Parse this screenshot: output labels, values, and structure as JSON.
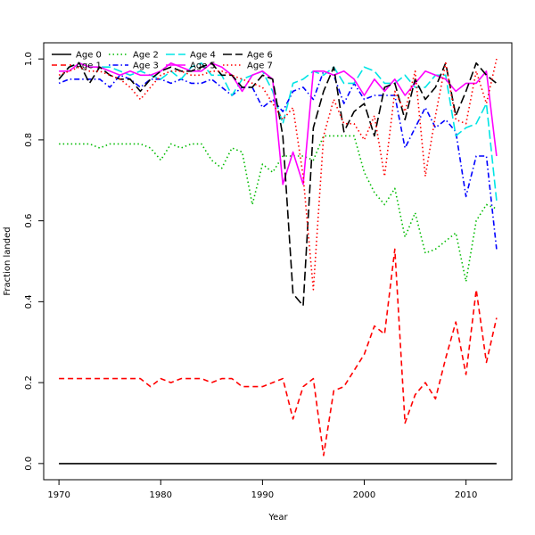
{
  "chart_data": {
    "type": "line",
    "title": "",
    "xlabel": "Year",
    "ylabel": "Fraction landed",
    "xlim": [
      1968.5,
      2014.5
    ],
    "ylim": [
      -0.04,
      1.04
    ],
    "xticks": [
      1970,
      1980,
      1990,
      2000,
      2010
    ],
    "yticks": [
      0.0,
      0.2,
      0.4,
      0.6,
      0.8,
      1.0
    ],
    "grid": false,
    "legend_position": "top-left",
    "x": [
      1970,
      1971,
      1972,
      1973,
      1974,
      1975,
      1976,
      1977,
      1978,
      1979,
      1980,
      1981,
      1982,
      1983,
      1984,
      1985,
      1986,
      1987,
      1988,
      1989,
      1990,
      1991,
      1992,
      1993,
      1994,
      1995,
      1996,
      1997,
      1998,
      1999,
      2000,
      2001,
      2002,
      2003,
      2004,
      2005,
      2006,
      2007,
      2008,
      2009,
      2010,
      2011,
      2012,
      2013
    ],
    "series": [
      {
        "name": "Age 0",
        "color": "#000000",
        "dash": "solid",
        "values": [
          0,
          0,
          0,
          0,
          0,
          0,
          0,
          0,
          0,
          0,
          0,
          0,
          0,
          0,
          0,
          0,
          0,
          0,
          0,
          0,
          0,
          0,
          0,
          0,
          0,
          0,
          0,
          0,
          0,
          0,
          0,
          0,
          0,
          0,
          0,
          0,
          0,
          0,
          0,
          0,
          0,
          0,
          0,
          0
        ]
      },
      {
        "name": "Age 1",
        "color": "#ff0000",
        "dash": "dashed",
        "values": [
          0.21,
          0.21,
          0.21,
          0.21,
          0.21,
          0.21,
          0.21,
          0.21,
          0.21,
          0.19,
          0.21,
          0.2,
          0.21,
          0.21,
          0.21,
          0.2,
          0.21,
          0.21,
          0.19,
          0.19,
          0.19,
          0.2,
          0.21,
          0.11,
          0.19,
          0.21,
          0.02,
          0.18,
          0.19,
          0.23,
          0.27,
          0.34,
          0.32,
          0.53,
          0.1,
          0.17,
          0.2,
          0.16,
          0.26,
          0.35,
          0.22,
          0.43,
          0.25,
          0.36
        ]
      },
      {
        "name": "Age 2",
        "color": "#00bb00",
        "dash": "dotted",
        "values": [
          0.79,
          0.79,
          0.79,
          0.79,
          0.78,
          0.79,
          0.79,
          0.79,
          0.79,
          0.78,
          0.75,
          0.79,
          0.78,
          0.79,
          0.79,
          0.75,
          0.73,
          0.78,
          0.77,
          0.64,
          0.74,
          0.72,
          0.76,
          0.76,
          0.76,
          0.75,
          0.81,
          0.81,
          0.81,
          0.81,
          0.72,
          0.67,
          0.64,
          0.68,
          0.56,
          0.62,
          0.52,
          0.53,
          0.55,
          0.57,
          0.45,
          0.6,
          0.64,
          0.63
        ]
      },
      {
        "name": "Age 3",
        "color": "#0000ff",
        "dash": "dashdot",
        "values": [
          0.94,
          0.95,
          0.95,
          0.95,
          0.95,
          0.93,
          0.96,
          0.95,
          0.93,
          0.95,
          0.95,
          0.94,
          0.95,
          0.94,
          0.94,
          0.95,
          0.93,
          0.91,
          0.93,
          0.93,
          0.88,
          0.9,
          0.87,
          0.92,
          0.93,
          0.9,
          0.97,
          0.96,
          0.89,
          0.94,
          0.9,
          0.91,
          0.91,
          0.91,
          0.78,
          0.83,
          0.88,
          0.83,
          0.85,
          0.82,
          0.66,
          0.76,
          0.76,
          0.53
        ]
      },
      {
        "name": "Age 4",
        "color": "#00e5e5",
        "dash": "longdash",
        "values": [
          0.95,
          0.98,
          0.99,
          0.98,
          0.98,
          0.98,
          0.97,
          0.96,
          0.97,
          0.96,
          0.95,
          0.97,
          0.95,
          0.98,
          0.99,
          0.96,
          0.96,
          0.91,
          0.95,
          0.96,
          0.97,
          0.92,
          0.84,
          0.94,
          0.95,
          0.97,
          0.96,
          0.98,
          0.94,
          0.94,
          0.98,
          0.97,
          0.94,
          0.94,
          0.96,
          0.93,
          0.93,
          0.96,
          0.96,
          0.81,
          0.83,
          0.84,
          0.89,
          0.65
        ]
      },
      {
        "name": "Age 5",
        "color": "#ff00ff",
        "dash": "solid",
        "values": [
          0.97,
          0.97,
          0.99,
          0.98,
          0.98,
          0.97,
          0.96,
          0.97,
          0.96,
          0.96,
          0.97,
          0.99,
          0.98,
          0.97,
          0.97,
          0.99,
          0.98,
          0.96,
          0.92,
          0.96,
          0.97,
          0.95,
          0.69,
          0.77,
          0.69,
          0.97,
          0.97,
          0.96,
          0.97,
          0.95,
          0.91,
          0.95,
          0.92,
          0.95,
          0.91,
          0.94,
          0.97,
          0.96,
          0.95,
          0.92,
          0.94,
          0.94,
          0.97,
          0.76
        ]
      },
      {
        "name": "Age 6",
        "color": "#000000",
        "dash": "longdash",
        "values": [
          0.95,
          0.98,
          0.99,
          0.94,
          0.98,
          0.96,
          0.95,
          0.95,
          0.92,
          0.95,
          0.97,
          0.98,
          0.97,
          0.97,
          0.98,
          0.99,
          0.96,
          0.96,
          0.93,
          0.93,
          0.96,
          0.95,
          0.81,
          0.42,
          0.39,
          0.83,
          0.92,
          0.98,
          0.82,
          0.87,
          0.89,
          0.81,
          0.93,
          0.94,
          0.85,
          0.95,
          0.9,
          0.93,
          0.99,
          0.86,
          0.92,
          0.99,
          0.96,
          0.94
        ]
      },
      {
        "name": "Age 7",
        "color": "#ff0000",
        "dash": "dotted",
        "values": [
          0.96,
          0.97,
          0.98,
          0.97,
          0.97,
          0.96,
          0.95,
          0.93,
          0.9,
          0.93,
          0.96,
          0.97,
          0.97,
          0.96,
          0.96,
          0.97,
          0.97,
          0.96,
          0.95,
          0.94,
          0.93,
          0.89,
          0.85,
          0.88,
          0.71,
          0.43,
          0.81,
          0.9,
          0.84,
          0.84,
          0.8,
          0.86,
          0.71,
          0.92,
          0.87,
          0.97,
          0.71,
          0.86,
          0.99,
          0.85,
          0.84,
          0.97,
          0.89,
          1.0
        ]
      }
    ]
  }
}
